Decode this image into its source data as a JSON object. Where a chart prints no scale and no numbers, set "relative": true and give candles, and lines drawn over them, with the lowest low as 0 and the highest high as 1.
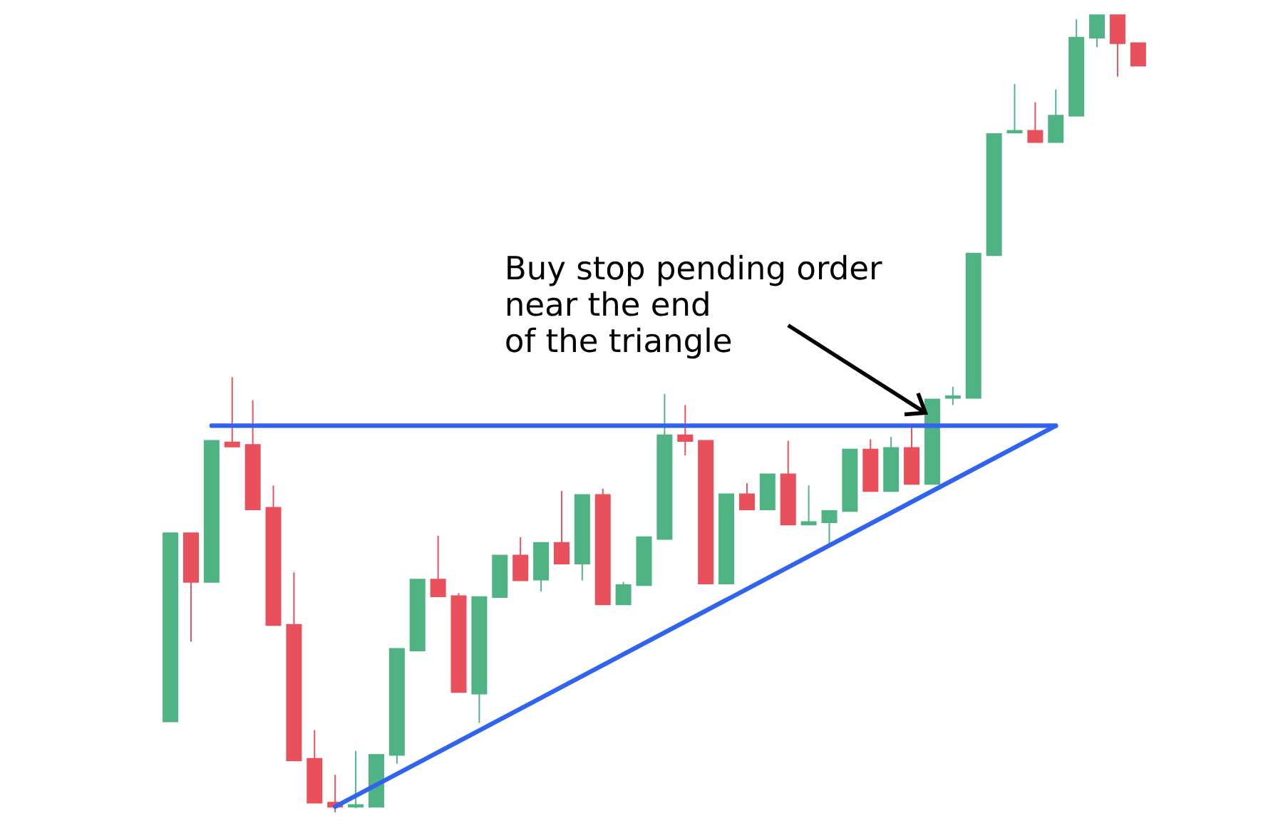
{
  "chart_data": {
    "type": "candlestick",
    "relative": true,
    "categories": [
      null,
      null,
      null,
      null,
      null,
      null,
      null,
      null,
      null,
      null,
      null,
      null,
      null,
      null,
      null,
      null,
      null,
      null,
      null,
      null,
      null,
      null,
      null,
      null,
      null,
      null,
      null,
      null,
      null,
      null,
      null,
      null,
      null,
      null,
      null,
      null,
      null,
      null,
      null,
      null,
      null,
      null,
      null,
      null,
      null,
      null,
      null,
      null
    ],
    "ohlc": [
      [
        0.114,
        0.35,
        0.114,
        0.35
      ],
      [
        0.35,
        0.35,
        0.214,
        0.289
      ],
      [
        0.289,
        0.466,
        0.289,
        0.466
      ],
      [
        0.464,
        0.546,
        0.459,
        0.459
      ],
      [
        0.461,
        0.517,
        0.38,
        0.38
      ],
      [
        0.382,
        0.41,
        0.235,
        0.235
      ],
      [
        0.235,
        0.301,
        0.065,
        0.065
      ],
      [
        0.067,
        0.103,
        0.012,
        0.012
      ],
      [
        0.012,
        0.047,
        0,
        0.007
      ],
      [
        0.007,
        0.077,
        0.005,
        0.009
      ],
      [
        0.007,
        0.072,
        0.007,
        0.072
      ],
      [
        0.072,
        0.205,
        0.061,
        0.205
      ],
      [
        0.203,
        0.292,
        0.203,
        0.292
      ],
      [
        0.292,
        0.347,
        0.271,
        0.271
      ],
      [
        0.271,
        0.275,
        0.151,
        0.151
      ],
      [
        0.149,
        0.27,
        0.112,
        0.27
      ],
      [
        0.27,
        0.322,
        0.27,
        0.322
      ],
      [
        0.322,
        0.345,
        0.291,
        0.291
      ],
      [
        0.292,
        0.338,
        0.277,
        0.338
      ],
      [
        0.338,
        0.403,
        0.312,
        0.312
      ],
      [
        0.312,
        0.398,
        0.291,
        0.398
      ],
      [
        0.398,
        0.406,
        0.261,
        0.261
      ],
      [
        0.261,
        0.289,
        0.261,
        0.285
      ],
      [
        0.285,
        0.345,
        0.285,
        0.345
      ],
      [
        0.343,
        0.525,
        0.343,
        0.473
      ],
      [
        0.473,
        0.511,
        0.448,
        0.466
      ],
      [
        0.466,
        0.466,
        0.287,
        0.287
      ],
      [
        0.287,
        0.399,
        0.287,
        0.399
      ],
      [
        0.399,
        0.413,
        0.38,
        0.38
      ],
      [
        0.38,
        0.424,
        0.38,
        0.424
      ],
      [
        0.424,
        0.466,
        0.361,
        0.361
      ],
      [
        0.361,
        0.41,
        0.361,
        0.364
      ],
      [
        0.364,
        0.378,
        0.333,
        0.378
      ],
      [
        0.378,
        0.455,
        0.378,
        0.455
      ],
      [
        0.455,
        0.468,
        0.403,
        0.403
      ],
      [
        0.403,
        0.471,
        0.403,
        0.457
      ],
      [
        0.457,
        0.485,
        0.412,
        0.412
      ],
      [
        0.412,
        0.518,
        0.412,
        0.518
      ],
      [
        0.52,
        0.534,
        0.511,
        0.522
      ],
      [
        0.52,
        0.701,
        0.52,
        0.701
      ],
      [
        0.699,
        0.851,
        0.699,
        0.851
      ],
      [
        0.853,
        0.914,
        0.853,
        0.855
      ],
      [
        0.855,
        0.891,
        0.841,
        0.841
      ],
      [
        0.841,
        0.907,
        0.841,
        0.874
      ],
      [
        0.874,
        0.995,
        0.874,
        0.972
      ],
      [
        0.972,
        1,
        0.96,
        1
      ],
      [
        1,
        1,
        0.923,
        0.965
      ],
      [
        0.965,
        0.965,
        0.937,
        0.937
      ]
    ],
    "colors": [
      "#4fb383",
      "#e8505b",
      "#4fb383",
      "#e8505b",
      "#e8505b",
      "#e8505b",
      "#e8505b",
      "#e8505b",
      "#e8505b",
      "#4fb383",
      "#4fb383",
      "#4fb383",
      "#4fb383",
      "#e8505b",
      "#e8505b",
      "#4fb383",
      "#4fb383",
      "#e8505b",
      "#4fb383",
      "#e8505b",
      "#4fb383",
      "#e8505b",
      "#4fb383",
      "#4fb383",
      "#4fb383",
      "#e8505b",
      "#e8505b",
      "#4fb383",
      "#e8505b",
      "#4fb383",
      "#e8505b",
      "#4fb383",
      "#4fb383",
      "#4fb383",
      "#e8505b",
      "#4fb383",
      "#e8505b",
      "#4fb383",
      "#4fb383",
      "#4fb383",
      "#4fb383",
      "#4fb383",
      "#e8505b",
      "#4fb383",
      "#4fb383",
      "#4fb383",
      "#e8505b",
      "#e8505b"
    ],
    "series": [
      {
        "type": "line",
        "color": "#2f63f0",
        "values": [
          null,
          null,
          0.485,
          null,
          null,
          null,
          null,
          null,
          null,
          null,
          null,
          null,
          null,
          null,
          null,
          null,
          null,
          null,
          null,
          null,
          null,
          null,
          null,
          null,
          null,
          null,
          null,
          null,
          null,
          null,
          null,
          null,
          null,
          null,
          null,
          null,
          null,
          null,
          null,
          null,
          null,
          null,
          null,
          0.485,
          null,
          null,
          null,
          null
        ]
      },
      {
        "type": "line",
        "color": "#2f63f0",
        "values": [
          null,
          null,
          null,
          null,
          null,
          null,
          null,
          null,
          0.007,
          null,
          null,
          null,
          null,
          null,
          null,
          null,
          null,
          null,
          null,
          null,
          null,
          null,
          null,
          null,
          null,
          null,
          null,
          null,
          null,
          null,
          null,
          null,
          null,
          null,
          null,
          null,
          null,
          null,
          null,
          null,
          null,
          null,
          null,
          0.485,
          null,
          null,
          null,
          null
        ]
      }
    ],
    "annotations": [
      "Buy stop pending order",
      "near the end",
      "of the triangle"
    ]
  }
}
